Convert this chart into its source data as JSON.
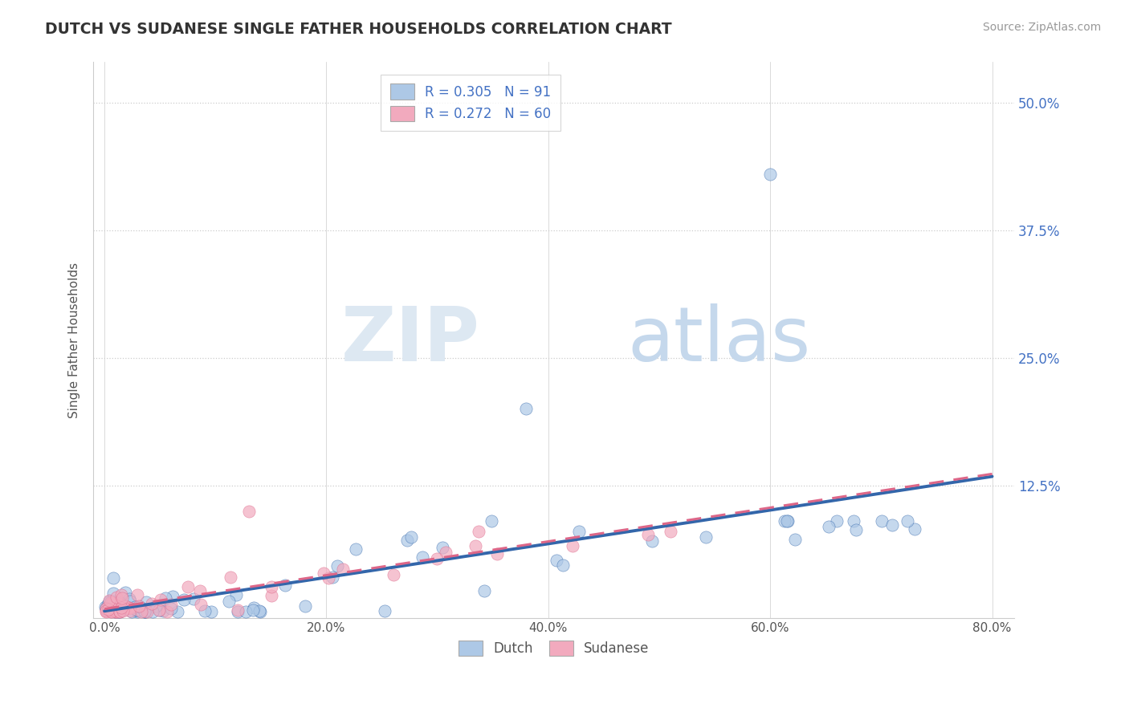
{
  "title": "DUTCH VS SUDANESE SINGLE FATHER HOUSEHOLDS CORRELATION CHART",
  "source": "Source: ZipAtlas.com",
  "ylabel": "Single Father Households",
  "xlim": [
    -0.01,
    0.82
  ],
  "ylim": [
    -0.005,
    0.54
  ],
  "xtick_labels": [
    "0.0%",
    "20.0%",
    "40.0%",
    "60.0%",
    "80.0%"
  ],
  "xtick_values": [
    0.0,
    0.2,
    0.4,
    0.6,
    0.8
  ],
  "ytick_labels": [
    "12.5%",
    "25.0%",
    "37.5%",
    "50.0%"
  ],
  "ytick_values": [
    0.125,
    0.25,
    0.375,
    0.5
  ],
  "dutch_R": 0.305,
  "dutch_N": 91,
  "sudanese_R": 0.272,
  "sudanese_N": 60,
  "dutch_color": "#adc8e6",
  "sudanese_color": "#f2aabe",
  "dutch_line_color": "#3366aa",
  "sudanese_line_color": "#dd6688",
  "legend_text_color": "#4472c4",
  "background_color": "#ffffff",
  "grid_color": "#cccccc",
  "title_color": "#333333"
}
